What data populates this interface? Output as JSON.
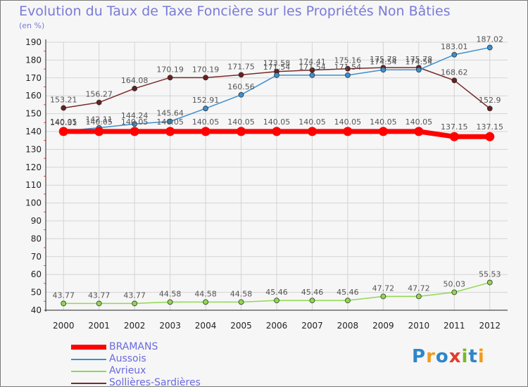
{
  "header": {
    "title": "Evolution du Taux de Taxe Foncière sur les Propriétés Non Bâties",
    "unit": "(en %)"
  },
  "brand": {
    "text": "Proxiti",
    "letters": [
      "P",
      "r",
      "o",
      "x",
      "i",
      "t",
      "i"
    ],
    "colors": [
      "#2e86c9",
      "#f39b1e",
      "#2e86c9",
      "#e23b2e",
      "#7ab929",
      "#2e86c9",
      "#f39b1e"
    ]
  },
  "chart_data": {
    "type": "line",
    "title": "Evolution du Taux de Taxe Foncière sur les Propriétés Non Bâties",
    "ylabel": "(en %)",
    "xlabel": "",
    "ylim": [
      40,
      190
    ],
    "yticks": [
      40,
      50,
      60,
      70,
      80,
      90,
      100,
      110,
      120,
      130,
      140,
      150,
      160,
      170,
      180,
      190
    ],
    "categories": [
      "2000",
      "2001",
      "2002",
      "2003",
      "2004",
      "2005",
      "2006",
      "2007",
      "2008",
      "2009",
      "2010",
      "2011",
      "2012"
    ],
    "grid": true,
    "legend_position": "bottom-left",
    "series": [
      {
        "name": "BRAMANS",
        "color": "#ff0000",
        "values": [
          140.05,
          140.05,
          140.05,
          140.05,
          140.05,
          140.05,
          140.05,
          140.05,
          140.05,
          140.05,
          140.05,
          137.15,
          137.15
        ],
        "labels": [
          "140.05",
          "140.05",
          "140.05",
          "140.05",
          "140.05",
          "140.05",
          "140.05",
          "140.05",
          "140.05",
          "140.05",
          "140.05",
          "137.15",
          "137.15"
        ]
      },
      {
        "name": "Aussois",
        "color": "#3a8fd0",
        "values": [
          140.31,
          142.11,
          144.24,
          145.64,
          152.91,
          160.56,
          171.54,
          171.54,
          171.54,
          174.54,
          174.54,
          183.01,
          187.02
        ],
        "labels": [
          "140.31",
          "142.11",
          "144.24",
          "145.64",
          "152.91",
          "160.56",
          "171.54",
          "171.54",
          "171.54",
          "174.54",
          "174.54",
          "183.01",
          "187.02"
        ]
      },
      {
        "name": "Avrieux",
        "color": "#90d850",
        "values": [
          43.77,
          43.77,
          43.77,
          44.58,
          44.58,
          44.58,
          45.46,
          45.46,
          45.46,
          47.72,
          47.72,
          50.03,
          55.53
        ],
        "labels": [
          "43.77",
          "43.77",
          "43.77",
          "44.58",
          "44.58",
          "44.58",
          "45.46",
          "45.46",
          "45.46",
          "47.72",
          "47.72",
          "50.03",
          "55.53"
        ]
      },
      {
        "name": "Sollières-Sardières",
        "color": "#7a2a2a",
        "values": [
          153.21,
          156.27,
          164.08,
          170.19,
          170.19,
          171.75,
          173.58,
          174.41,
          175.16,
          175.78,
          175.78,
          168.62,
          152.9
        ],
        "labels": [
          "153.21",
          "156.27",
          "164.08",
          "170.19",
          "170.19",
          "171.75",
          "173.58",
          "174.41",
          "175.16",
          "175.78",
          "175.78",
          "168.62",
          "152.9"
        ]
      }
    ]
  }
}
